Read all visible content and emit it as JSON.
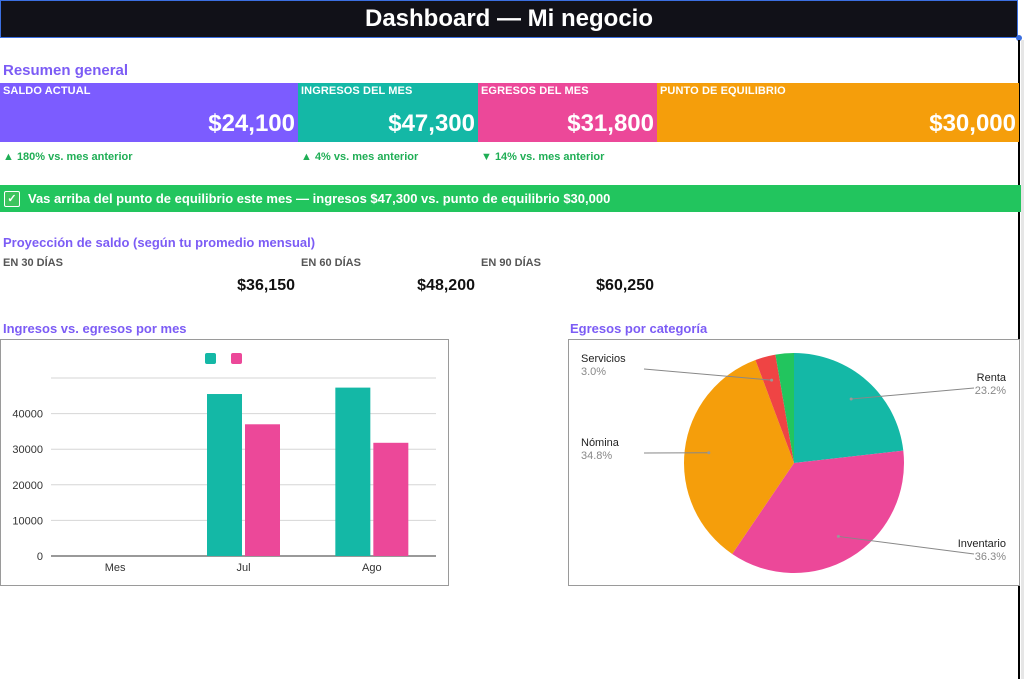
{
  "header": {
    "title": "Dashboard — Mi negocio"
  },
  "summary": {
    "title": "Resumen general",
    "cards": [
      {
        "label": "SALDO ACTUAL",
        "value": "$24,100",
        "color": "#7c5cff"
      },
      {
        "label": "INGRESOS DEL MES",
        "value": "$47,300",
        "color": "#14b8a6"
      },
      {
        "label": "EGRESOS DEL MES",
        "value": "$31,800",
        "color": "#ec4899"
      },
      {
        "label": "PUNTO DE EQUILIBRIO",
        "value": "$30,000",
        "color": "#f59e0b"
      }
    ],
    "deltas": [
      "▲ 180% vs. mes anterior",
      "▲ 4% vs. mes anterior",
      "▼ 14% vs. mes anterior"
    ]
  },
  "banner": {
    "icon": "check-mark-icon",
    "text": "Vas arriba del punto de equilibrio este mes — ingresos $47,300 vs. punto de equilibrio $30,000"
  },
  "projection": {
    "title": "Proyección de saldo (según tu promedio mensual)",
    "items": [
      {
        "label": "EN 30 DÍAS",
        "value": "$36,150"
      },
      {
        "label": "EN 60 DÍAS",
        "value": "$48,200"
      },
      {
        "label": "EN 90 DÍAS",
        "value": "$60,250"
      }
    ]
  },
  "chart_data": [
    {
      "type": "bar",
      "title": "Ingresos vs. egresos por mes",
      "categories": [
        "Mes",
        "Jul",
        "Ago"
      ],
      "series": [
        {
          "values": [
            0,
            45500,
            47300
          ],
          "color": "#14b8a6"
        },
        {
          "values": [
            0,
            37000,
            31800
          ],
          "color": "#ec4899"
        }
      ],
      "ylim": [
        0,
        50000
      ],
      "yticks": [
        0,
        10000,
        20000,
        30000,
        40000,
        50000
      ],
      "grid": true,
      "legend": "top"
    },
    {
      "type": "pie",
      "title": "Egresos por categoría",
      "slices": [
        {
          "label": "Renta",
          "pct": "23.2%",
          "value": 23.2,
          "color": "#14b8a6"
        },
        {
          "label": "Inventario",
          "pct": "36.3%",
          "value": 36.3,
          "color": "#ec4899"
        },
        {
          "label": "Nómina",
          "pct": "34.8%",
          "value": 34.8,
          "color": "#f59e0b"
        },
        {
          "label": "Servicios",
          "pct": "3.0%",
          "value": 3.0,
          "color": "#ef4444"
        },
        {
          "label": "",
          "pct": "",
          "value": 2.7,
          "color": "#22c55e"
        }
      ]
    }
  ]
}
